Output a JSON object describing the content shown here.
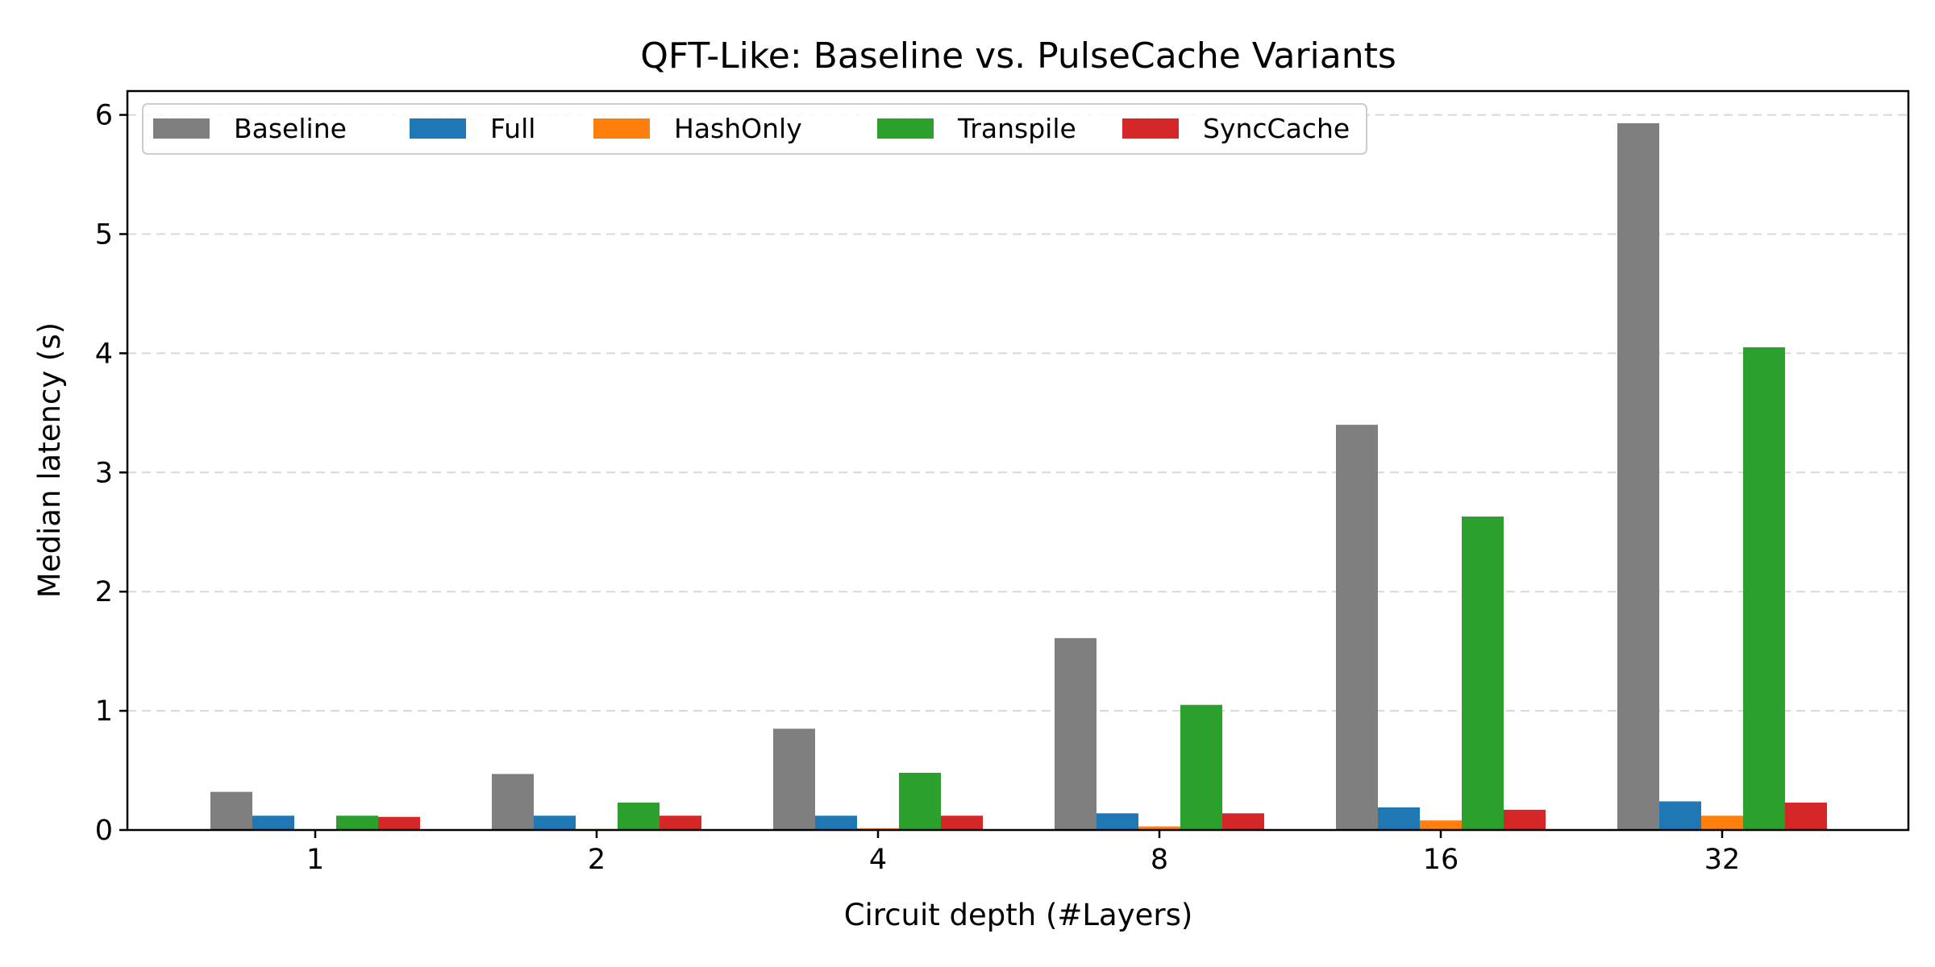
{
  "chart_data": {
    "type": "bar",
    "title": "QFT-Like: Baseline vs. PulseCache Variants",
    "xlabel": "Circuit depth (#Layers)",
    "ylabel": "Median latency (s)",
    "categories": [
      "1",
      "2",
      "4",
      "8",
      "16",
      "32"
    ],
    "ylim": [
      0,
      6.2
    ],
    "yticks": [
      0,
      1,
      2,
      3,
      4,
      5,
      6
    ],
    "grid": "y-dashed",
    "legend_placement": "top-left",
    "series": [
      {
        "name": "Baseline",
        "color": "#7f7f7f",
        "values": [
          0.32,
          0.47,
          0.85,
          1.61,
          3.4,
          5.93
        ]
      },
      {
        "name": "Full",
        "color": "#1f77b4",
        "values": [
          0.12,
          0.12,
          0.12,
          0.14,
          0.19,
          0.24
        ]
      },
      {
        "name": "HashOnly",
        "color": "#ff7f0e",
        "values": [
          0.005,
          0.008,
          0.015,
          0.03,
          0.08,
          0.12
        ]
      },
      {
        "name": "Transpile",
        "color": "#2ca02c",
        "values": [
          0.12,
          0.23,
          0.48,
          1.05,
          2.63,
          4.05
        ]
      },
      {
        "name": "SyncCache",
        "color": "#d62728",
        "values": [
          0.11,
          0.12,
          0.12,
          0.14,
          0.17,
          0.23
        ]
      }
    ]
  }
}
